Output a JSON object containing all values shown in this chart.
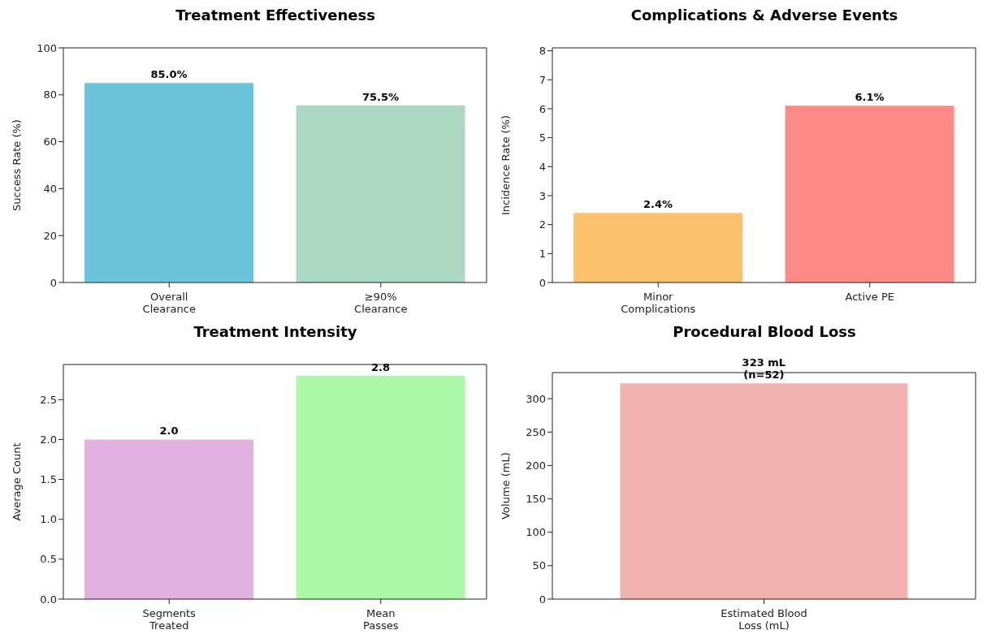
{
  "chart_data": [
    {
      "type": "bar",
      "title": "Treatment Effectiveness",
      "ylabel": "Success Rate (%)",
      "categories": [
        "Overall\nClearance",
        "≥90%\nClearance"
      ],
      "values": [
        85.0,
        75.5
      ],
      "colors": [
        "#6bc4da",
        "#acd8c4"
      ],
      "value_labels": [
        "85.0%",
        "75.5%"
      ],
      "ylim": [
        0,
        100
      ],
      "yticks": [
        0,
        20,
        40,
        60,
        80,
        100
      ]
    },
    {
      "type": "bar",
      "title": "Complications & Adverse Events",
      "ylabel": "Incidence Rate (%)",
      "categories": [
        "Minor\nComplications",
        "Active PE"
      ],
      "values": [
        2.4,
        6.1
      ],
      "colors": [
        "#fdc26e",
        "#ff8a87"
      ],
      "value_labels": [
        "2.4%",
        "6.1%"
      ],
      "ylim": [
        0,
        8.1
      ],
      "yticks": [
        0,
        1,
        2,
        3,
        4,
        5,
        6,
        7,
        8
      ]
    },
    {
      "type": "bar",
      "title": "Treatment Intensity",
      "ylabel": "Average Count",
      "categories": [
        "Segments\nTreated",
        "Mean\nPasses"
      ],
      "values": [
        2.0,
        2.8
      ],
      "colors": [
        "#e1b3e2",
        "#acfaa8"
      ],
      "value_labels": [
        "2.0",
        "2.8"
      ],
      "ylim": [
        0,
        2.94
      ],
      "yticks": [
        {
          "value": 0,
          "label": "0.0"
        },
        {
          "value": 0.5,
          "label": "0.5"
        },
        {
          "value": 1,
          "label": "1.0"
        },
        {
          "value": 1.5,
          "label": "1.5"
        },
        {
          "value": 2,
          "label": "2.0"
        },
        {
          "value": 2.5,
          "label": "2.5"
        }
      ]
    },
    {
      "type": "bar",
      "title": "Procedural Blood Loss",
      "ylabel": "Volume (mL)",
      "categories": [
        "Estimated Blood\nLoss (mL)"
      ],
      "values": [
        323
      ],
      "colors": [
        "#f2b3b3"
      ],
      "value_labels": [
        "323 mL\n(n=52)"
      ],
      "ylim": [
        0,
        339
      ],
      "yticks": [
        0,
        50,
        100,
        150,
        200,
        250,
        300
      ]
    }
  ]
}
